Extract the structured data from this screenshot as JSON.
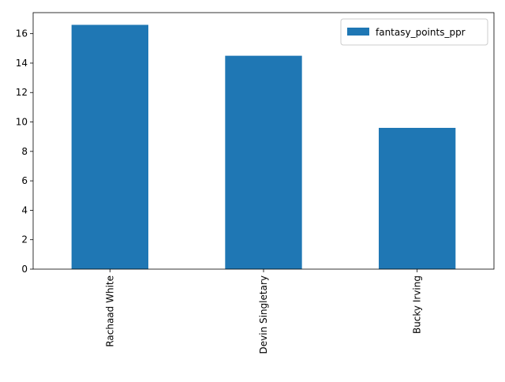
{
  "chart_data": {
    "type": "bar",
    "categories": [
      "Rachaad White",
      "Devin Singletary",
      "Bucky Irving"
    ],
    "series": [
      {
        "name": "fantasy_points_ppr",
        "values": [
          16.6,
          14.5,
          9.6
        ],
        "color": "#1f77b4"
      }
    ],
    "title": "",
    "xlabel": "",
    "ylabel": "",
    "ylim": [
      0,
      17.43
    ],
    "yticks": [
      0,
      2,
      4,
      6,
      8,
      10,
      12,
      14,
      16
    ],
    "ytick_labels": [
      "0",
      "2",
      "4",
      "6",
      "8",
      "10",
      "12",
      "14",
      "16"
    ],
    "grid": false,
    "legend": {
      "placement": "top-right",
      "entries": [
        "fantasy_points_ppr"
      ]
    }
  }
}
